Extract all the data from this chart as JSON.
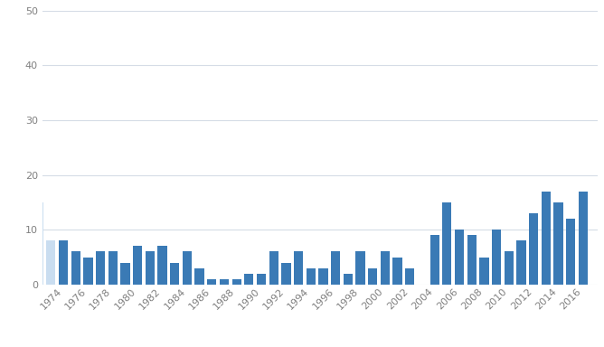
{
  "years": [
    1974,
    1975,
    1976,
    1977,
    1978,
    1979,
    1980,
    1981,
    1982,
    1983,
    1984,
    1985,
    1986,
    1987,
    1988,
    1989,
    1990,
    1991,
    1992,
    1993,
    1994,
    1995,
    1996,
    1997,
    1998,
    1999,
    2000,
    2001,
    2002,
    2003,
    2004,
    2005,
    2006,
    2007,
    2008,
    2009,
    2010,
    2011,
    2012,
    2013,
    2014,
    2015,
    2016
  ],
  "values": [
    8,
    6,
    5,
    6,
    6,
    4,
    7,
    6,
    7,
    4,
    6,
    3,
    1,
    1,
    1,
    2,
    2,
    6,
    4,
    6,
    3,
    3,
    6,
    2,
    6,
    3,
    6,
    5,
    3,
    0,
    9,
    15,
    10,
    9,
    5,
    10,
    6,
    8,
    13,
    17,
    15,
    12,
    17
  ],
  "bar_color": "#3a7ab5",
  "bar_color_partial": "#c9ddf0",
  "ylim": [
    0,
    50
  ],
  "yticks": [
    0,
    10,
    20,
    30,
    40,
    50
  ],
  "xtick_years": [
    1974,
    1976,
    1978,
    1980,
    1982,
    1984,
    1986,
    1988,
    1990,
    1992,
    1994,
    1996,
    1998,
    2000,
    2002,
    2004,
    2006,
    2008,
    2010,
    2012,
    2014,
    2016
  ],
  "background_color": "#ffffff",
  "grid_color": "#d5dce6",
  "label_color": "#808080",
  "fontsize_ticks": 8,
  "partial_bars": [
    {
      "year": 1972,
      "value": 15
    },
    {
      "year": 1973,
      "value": 8
    }
  ],
  "xlim_left": 1972.3,
  "xlim_right": 2017.2
}
